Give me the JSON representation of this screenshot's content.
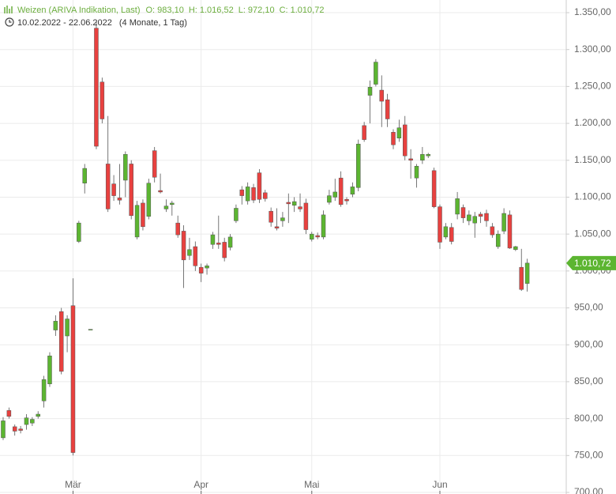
{
  "chart_data": {
    "type": "candlestick",
    "title": "Weizen (ARIVA Indikation, Last)",
    "ohlc_labels": [
      "O: 983,10",
      "H: 1.016,52",
      "L: 972,10",
      "C: 1.010,72"
    ],
    "date_range": "10.02.2022 - 22.06.2022",
    "period": "(4 Monate, 1 Tag)",
    "up_color": "#5cb531",
    "down_color": "#e8413f",
    "last_price": {
      "value": 1010.72,
      "label": "1.010,72"
    },
    "open": [
      774,
      811,
      789,
      786,
      792,
      794,
      803,
      824,
      847,
      920,
      945,
      912,
      953,
      1040,
      1119,
      921,
      1329,
      1256,
      1145,
      1118,
      1099,
      1123,
      1145,
      1046,
      1092,
      1074,
      1163,
      1109,
      1084,
      1090,
      1065,
      1054,
      1021,
      1033,
      1005,
      1004,
      1036,
      1038,
      1039,
      1032,
      1068,
      1110,
      1095,
      1113,
      1133,
      1106,
      1081,
      1060,
      1068,
      1093,
      1089,
      1087,
      1092,
      1043,
      1048,
      1046,
      1093,
      1100,
      1126,
      1097,
      1104,
      1113,
      1197,
      1238,
      1253,
      1245,
      1232,
      1188,
      1180,
      1198,
      1152,
      1126,
      1150,
      1156,
      1136,
      1087,
      1046,
      1059,
      1077,
      1086,
      1068,
      1065,
      1077,
      1078,
      1060,
      1033,
      1054,
      1076,
      1029,
      1005,
      983.1
    ],
    "high": [
      802,
      815,
      792,
      790,
      806,
      802,
      810,
      858,
      890,
      940,
      950,
      940,
      990,
      1068,
      1145,
      921,
      1338,
      1262,
      1210,
      1130,
      1145,
      1162,
      1150,
      1095,
      1097,
      1125,
      1168,
      1132,
      1097,
      1095,
      1075,
      1062,
      1045,
      1040,
      1010,
      1010,
      1053,
      1075,
      1045,
      1050,
      1090,
      1115,
      1120,
      1118,
      1138,
      1110,
      1086,
      1085,
      1080,
      1105,
      1100,
      1105,
      1098,
      1053,
      1052,
      1082,
      1110,
      1125,
      1135,
      1100,
      1120,
      1178,
      1202,
      1258,
      1287,
      1265,
      1240,
      1192,
      1205,
      1210,
      1165,
      1145,
      1168,
      1160,
      1140,
      1090,
      1065,
      1065,
      1107,
      1090,
      1082,
      1080,
      1080,
      1083,
      1065,
      1055,
      1085,
      1082,
      1034,
      1030,
      1016.52
    ],
    "low": [
      771,
      800,
      777,
      780,
      785,
      790,
      800,
      815,
      843,
      912,
      860,
      890,
      750,
      1038,
      1105,
      920,
      1165,
      1200,
      1080,
      1095,
      1090,
      1100,
      1070,
      1043,
      1055,
      1070,
      1120,
      1105,
      1080,
      1075,
      1045,
      977,
      1015,
      1000,
      985,
      995,
      1030,
      1030,
      1013,
      1028,
      1065,
      1090,
      1090,
      1092,
      1092,
      1094,
      1060,
      1055,
      1060,
      1065,
      1080,
      1080,
      1050,
      1040,
      1043,
      1043,
      1090,
      1095,
      1087,
      1090,
      1100,
      1108,
      1175,
      1200,
      1250,
      1195,
      1195,
      1165,
      1175,
      1150,
      1125,
      1113,
      1145,
      1153,
      1085,
      1030,
      1043,
      1036,
      1070,
      1065,
      1062,
      1045,
      1065,
      1060,
      1045,
      1030,
      1050,
      1030,
      1027,
      973,
      972.1
    ],
    "close": [
      797,
      803,
      783,
      784,
      801,
      799,
      806,
      853,
      885,
      932,
      864,
      935,
      754,
      1065,
      1139,
      921,
      1169,
      1206,
      1084,
      1102,
      1096,
      1158,
      1075,
      1089,
      1060,
      1119,
      1127,
      1107,
      1088,
      1092,
      1049,
      1015,
      1029,
      1007,
      997,
      1007,
      1049,
      1036,
      1018,
      1046,
      1085,
      1102,
      1114,
      1096,
      1097,
      1098,
      1066,
      1058,
      1072,
      1091,
      1094,
      1084,
      1056,
      1050,
      1046,
      1076,
      1102,
      1107,
      1090,
      1095,
      1114,
      1172,
      1178,
      1249,
      1283,
      1230,
      1206,
      1171,
      1194,
      1156,
      1150,
      1142,
      1158,
      1158,
      1087,
      1039,
      1060,
      1040,
      1098,
      1072,
      1076,
      1074,
      1074,
      1068,
      1049,
      1050,
      1078,
      1031,
      1033,
      975,
      1010.72
    ],
    "xlim": [
      -0.54,
      96.7
    ],
    "xticks": [
      {
        "value": 12,
        "label": "Mär"
      },
      {
        "value": 34,
        "label": "Apr"
      },
      {
        "value": 53,
        "label": "Mai"
      },
      {
        "value": 75,
        "label": "Jun"
      }
    ],
    "ylim": [
      700,
      1350
    ],
    "yticks": [
      {
        "value": 700,
        "label": "700,00"
      },
      {
        "value": 750,
        "label": "750,00"
      },
      {
        "value": 800,
        "label": "800,00"
      },
      {
        "value": 850,
        "label": "850,00"
      },
      {
        "value": 900,
        "label": "900,00"
      },
      {
        "value": 950,
        "label": "950,00"
      },
      {
        "value": 1000,
        "label": "1.000,00"
      },
      {
        "value": 1050,
        "label": "1.050,00"
      },
      {
        "value": 1100,
        "label": "1.100,00"
      },
      {
        "value": 1150,
        "label": "1.150,00"
      },
      {
        "value": 1200,
        "label": "1.200,00"
      },
      {
        "value": 1250,
        "label": "1.250,00"
      },
      {
        "value": 1300,
        "label": "1.300,00"
      },
      {
        "value": 1350,
        "label": "1.350,00"
      }
    ],
    "grid": true
  }
}
